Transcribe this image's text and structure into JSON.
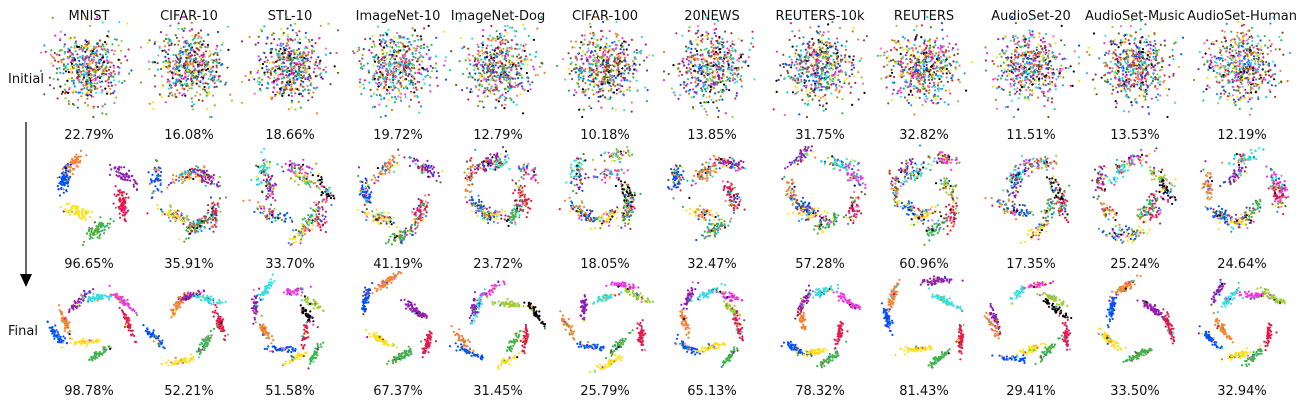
{
  "datasets": [
    "MNIST",
    "CIFAR-10",
    "STL-10",
    "ImageNet-10",
    "ImageNet-Dog",
    "CIFAR-100",
    "20NEWS",
    "REUTERS-10k",
    "REUTERS",
    "AudioSet-20",
    "AudioSet-Music",
    "AudioSet-Human"
  ],
  "rows": [
    {
      "label": "Initial",
      "accuracies": [
        "22.79%",
        "16.08%",
        "18.66%",
        "19.72%",
        "12.79%",
        "10.18%",
        "13.85%",
        "31.75%",
        "32.82%",
        "11.51%",
        "13.53%",
        "12.19%"
      ]
    },
    {
      "label": "",
      "accuracies": [
        "96.65%",
        "35.91%",
        "33.70%",
        "41.19%",
        "23.72%",
        "18.05%",
        "32.47%",
        "57.28%",
        "60.96%",
        "17.35%",
        "25.24%",
        "24.64%"
      ]
    },
    {
      "label": "Final",
      "accuracies": [
        "98.78%",
        "52.21%",
        "51.58%",
        "67.37%",
        "31.45%",
        "25.79%",
        "65.13%",
        "78.32%",
        "81.43%",
        "29.41%",
        "33.50%",
        "32.94%"
      ]
    }
  ],
  "colors": {
    "point_palette": [
      "#e6194b",
      "#3cb44b",
      "#ffe119",
      "#0050ff",
      "#f58231",
      "#911eb4",
      "#33e0e0",
      "#f032e6",
      "#9acd32",
      "#000000",
      "#1e90ff",
      "#8b4513",
      "#ff69b4",
      "#00ced1",
      "#b8860b",
      "#556b2f"
    ],
    "arrow": "#000000"
  }
}
